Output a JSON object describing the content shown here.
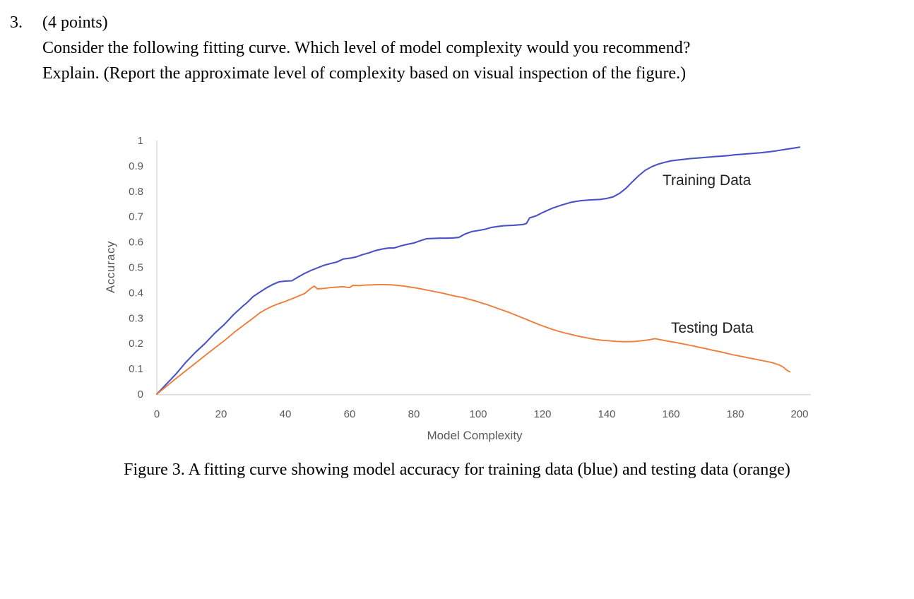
{
  "question": {
    "number": "3.",
    "points_line": "(4 points)",
    "prompt_line1": "Consider the following fitting curve. Which level of model complexity would you recommend?",
    "prompt_line2": "Explain. (Report the approximate level of complexity based on visual inspection of the figure.)"
  },
  "figure": {
    "caption": "Figure 3. A fitting curve showing model accuracy for training data (blue) and testing data (orange)"
  },
  "chart_data": {
    "type": "line",
    "title": "",
    "xlabel": "Model Complexity",
    "ylabel": "Accuracy",
    "xlim": [
      0,
      200
    ],
    "ylim": [
      0,
      1
    ],
    "grid": false,
    "legend_position": "inline-labels",
    "x_ticks": [
      0,
      20,
      40,
      60,
      80,
      100,
      120,
      140,
      160,
      180,
      200
    ],
    "x_tick_labels": [
      "0",
      "20",
      "40",
      "60",
      "80",
      "100",
      "120",
      "140",
      "160",
      "180",
      "200"
    ],
    "y_ticks": [
      0,
      0.1,
      0.2,
      0.3,
      0.4,
      0.5,
      0.6,
      0.7,
      0.8,
      0.9,
      1
    ],
    "y_tick_labels": [
      "0",
      "0.1",
      "0.2",
      "0.3",
      "0.4",
      "0.5",
      "0.6",
      "0.7",
      "0.8",
      "0.9",
      "1"
    ],
    "colors": {
      "training": "#4a52c8",
      "testing": "#ef7d3a",
      "axis_text": "#595959",
      "axis_line": "#d8d8d8",
      "label_text": "#1f1f1f"
    },
    "series": [
      {
        "name": "Training Data",
        "color_key": "training",
        "points": [
          [
            0,
            0
          ],
          [
            3,
            0.04
          ],
          [
            6,
            0.08
          ],
          [
            9,
            0.125
          ],
          [
            12,
            0.165
          ],
          [
            15,
            0.2
          ],
          [
            18,
            0.24
          ],
          [
            21,
            0.275
          ],
          [
            24,
            0.315
          ],
          [
            27,
            0.35
          ],
          [
            28,
            0.36
          ],
          [
            30,
            0.385
          ],
          [
            32,
            0.402
          ],
          [
            34,
            0.418
          ],
          [
            36,
            0.432
          ],
          [
            38,
            0.443
          ],
          [
            40,
            0.446
          ],
          [
            42,
            0.447
          ],
          [
            44,
            0.462
          ],
          [
            46,
            0.476
          ],
          [
            48,
            0.488
          ],
          [
            50,
            0.498
          ],
          [
            52,
            0.508
          ],
          [
            54,
            0.515
          ],
          [
            56,
            0.521
          ],
          [
            58,
            0.533
          ],
          [
            60,
            0.536
          ],
          [
            62,
            0.541
          ],
          [
            64,
            0.55
          ],
          [
            66,
            0.557
          ],
          [
            68,
            0.566
          ],
          [
            70,
            0.572
          ],
          [
            72,
            0.576
          ],
          [
            74,
            0.577
          ],
          [
            76,
            0.585
          ],
          [
            78,
            0.591
          ],
          [
            80,
            0.596
          ],
          [
            82,
            0.605
          ],
          [
            84,
            0.613
          ],
          [
            86,
            0.614
          ],
          [
            88,
            0.615
          ],
          [
            90,
            0.615
          ],
          [
            92,
            0.616
          ],
          [
            94,
            0.618
          ],
          [
            96,
            0.632
          ],
          [
            98,
            0.641
          ],
          [
            100,
            0.645
          ],
          [
            102,
            0.65
          ],
          [
            104,
            0.657
          ],
          [
            106,
            0.661
          ],
          [
            108,
            0.664
          ],
          [
            111,
            0.666
          ],
          [
            114,
            0.669
          ],
          [
            115,
            0.673
          ],
          [
            116,
            0.695
          ],
          [
            118,
            0.703
          ],
          [
            120,
            0.716
          ],
          [
            123,
            0.733
          ],
          [
            126,
            0.746
          ],
          [
            129,
            0.757
          ],
          [
            132,
            0.763
          ],
          [
            135,
            0.766
          ],
          [
            138,
            0.768
          ],
          [
            140,
            0.772
          ],
          [
            142,
            0.778
          ],
          [
            144,
            0.792
          ],
          [
            146,
            0.812
          ],
          [
            148,
            0.838
          ],
          [
            150,
            0.862
          ],
          [
            152,
            0.883
          ],
          [
            154,
            0.897
          ],
          [
            156,
            0.907
          ],
          [
            158,
            0.914
          ],
          [
            160,
            0.92
          ],
          [
            162,
            0.923
          ],
          [
            164,
            0.926
          ],
          [
            166,
            0.929
          ],
          [
            168,
            0.931
          ],
          [
            170,
            0.933
          ],
          [
            172,
            0.935
          ],
          [
            174,
            0.937
          ],
          [
            176,
            0.939
          ],
          [
            178,
            0.941
          ],
          [
            180,
            0.944
          ],
          [
            182,
            0.946
          ],
          [
            184,
            0.948
          ],
          [
            186,
            0.95
          ],
          [
            188,
            0.952
          ],
          [
            190,
            0.955
          ],
          [
            192,
            0.958
          ],
          [
            194,
            0.962
          ],
          [
            196,
            0.966
          ],
          [
            198,
            0.97
          ],
          [
            200,
            0.974
          ]
        ]
      },
      {
        "name": "Testing Data",
        "color_key": "testing",
        "points": [
          [
            0,
            0
          ],
          [
            3,
            0.031
          ],
          [
            6,
            0.062
          ],
          [
            9,
            0.092
          ],
          [
            12,
            0.122
          ],
          [
            15,
            0.152
          ],
          [
            18,
            0.182
          ],
          [
            21,
            0.211
          ],
          [
            24,
            0.243
          ],
          [
            27,
            0.272
          ],
          [
            30,
            0.3
          ],
          [
            32,
            0.32
          ],
          [
            34,
            0.335
          ],
          [
            36,
            0.347
          ],
          [
            38,
            0.357
          ],
          [
            40,
            0.366
          ],
          [
            42,
            0.376
          ],
          [
            44,
            0.386
          ],
          [
            46,
            0.397
          ],
          [
            48,
            0.418
          ],
          [
            49,
            0.426
          ],
          [
            50,
            0.415
          ],
          [
            52,
            0.417
          ],
          [
            54,
            0.42
          ],
          [
            56,
            0.422
          ],
          [
            58,
            0.424
          ],
          [
            60,
            0.42
          ],
          [
            61,
            0.429
          ],
          [
            63,
            0.428
          ],
          [
            65,
            0.43
          ],
          [
            67,
            0.431
          ],
          [
            69,
            0.432
          ],
          [
            71,
            0.432
          ],
          [
            73,
            0.431
          ],
          [
            75,
            0.429
          ],
          [
            77,
            0.426
          ],
          [
            79,
            0.422
          ],
          [
            81,
            0.418
          ],
          [
            83,
            0.413
          ],
          [
            85,
            0.408
          ],
          [
            87,
            0.403
          ],
          [
            89,
            0.398
          ],
          [
            91,
            0.392
          ],
          [
            93,
            0.386
          ],
          [
            95,
            0.382
          ],
          [
            97,
            0.375
          ],
          [
            99,
            0.368
          ],
          [
            101,
            0.36
          ],
          [
            103,
            0.352
          ],
          [
            105,
            0.343
          ],
          [
            107,
            0.334
          ],
          [
            109,
            0.325
          ],
          [
            111,
            0.315
          ],
          [
            113,
            0.305
          ],
          [
            115,
            0.295
          ],
          [
            117,
            0.284
          ],
          [
            119,
            0.274
          ],
          [
            121,
            0.265
          ],
          [
            123,
            0.256
          ],
          [
            125,
            0.248
          ],
          [
            127,
            0.241
          ],
          [
            129,
            0.235
          ],
          [
            131,
            0.229
          ],
          [
            133,
            0.224
          ],
          [
            135,
            0.219
          ],
          [
            137,
            0.215
          ],
          [
            139,
            0.212
          ],
          [
            141,
            0.21
          ],
          [
            143,
            0.208
          ],
          [
            145,
            0.207
          ],
          [
            147,
            0.207
          ],
          [
            149,
            0.208
          ],
          [
            151,
            0.211
          ],
          [
            153,
            0.214
          ],
          [
            155,
            0.219
          ],
          [
            157,
            0.214
          ],
          [
            159,
            0.209
          ],
          [
            161,
            0.205
          ],
          [
            163,
            0.2
          ],
          [
            165,
            0.195
          ],
          [
            167,
            0.19
          ],
          [
            169,
            0.184
          ],
          [
            171,
            0.179
          ],
          [
            173,
            0.173
          ],
          [
            175,
            0.168
          ],
          [
            177,
            0.162
          ],
          [
            179,
            0.156
          ],
          [
            181,
            0.151
          ],
          [
            183,
            0.146
          ],
          [
            185,
            0.141
          ],
          [
            187,
            0.136
          ],
          [
            189,
            0.131
          ],
          [
            191,
            0.126
          ],
          [
            192,
            0.122
          ],
          [
            193,
            0.118
          ],
          [
            194,
            0.113
          ],
          [
            195,
            0.106
          ],
          [
            196,
            0.095
          ],
          [
            197,
            0.088
          ]
        ]
      }
    ]
  }
}
